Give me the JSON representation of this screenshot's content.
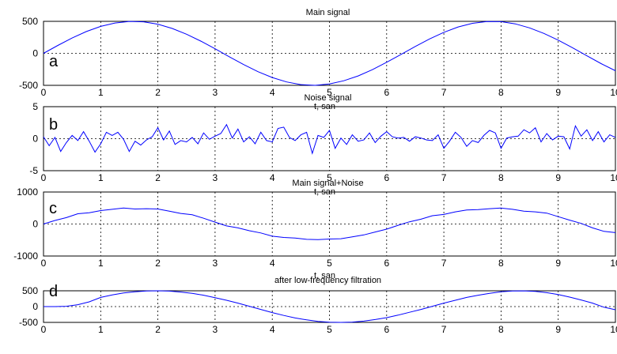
{
  "chart_data": [
    {
      "type": "line",
      "panel_label": "a",
      "title": "Main signal",
      "xlabel": "",
      "ylabel": "",
      "xlim": [
        0,
        10
      ],
      "ylim": [
        -500,
        500
      ],
      "xticks": [
        "0",
        "1",
        "2",
        "3",
        "4",
        "5",
        "6",
        "7",
        "8",
        "9",
        "10"
      ],
      "yticks": [
        "-500",
        "0",
        "500"
      ],
      "grid": true,
      "color": "#0000ff",
      "x": [
        0,
        0.25,
        0.5,
        0.75,
        1,
        1.25,
        1.5,
        1.75,
        2,
        2.25,
        2.5,
        2.75,
        3,
        3.25,
        3.5,
        3.75,
        4,
        4.25,
        4.5,
        4.75,
        5,
        5.25,
        5.5,
        5.75,
        6,
        6.25,
        6.5,
        6.75,
        7,
        7.25,
        7.5,
        7.75,
        8,
        8.25,
        8.5,
        8.75,
        9,
        9.25,
        9.5,
        9.75,
        10
      ],
      "y": [
        0,
        124,
        240,
        341,
        421,
        474,
        499,
        492,
        455,
        389,
        299,
        191,
        71,
        -54,
        -175,
        -286,
        -378,
        -447,
        -489,
        -500,
        -479,
        -429,
        -353,
        -255,
        -140,
        -17,
        108,
        225,
        329,
        412,
        469,
        498,
        495,
        461,
        398,
        311,
        206,
        88,
        -38,
        -160,
        -272
      ]
    },
    {
      "type": "line",
      "panel_label": "b",
      "title": "Noise signal",
      "xlabel": "t, san",
      "ylabel": "",
      "xlim": [
        0,
        10
      ],
      "ylim": [
        -5,
        5
      ],
      "xticks": [
        "0",
        "1",
        "2",
        "3",
        "4",
        "5",
        "6",
        "7",
        "8",
        "9",
        "10"
      ],
      "yticks": [
        "-5",
        "0",
        "5"
      ],
      "grid": true,
      "color": "#0000ff",
      "x": [
        0,
        0.1,
        0.2,
        0.3,
        0.4,
        0.5,
        0.6,
        0.7,
        0.8,
        0.9,
        1,
        1.1,
        1.2,
        1.3,
        1.4,
        1.5,
        1.6,
        1.7,
        1.8,
        1.9,
        2,
        2.1,
        2.2,
        2.3,
        2.4,
        2.5,
        2.6,
        2.7,
        2.8,
        2.9,
        3,
        3.1,
        3.2,
        3.3,
        3.4,
        3.5,
        3.6,
        3.7,
        3.8,
        3.9,
        4,
        4.1,
        4.2,
        4.3,
        4.4,
        4.5,
        4.6,
        4.7,
        4.8,
        4.9,
        5,
        5.1,
        5.2,
        5.3,
        5.4,
        5.5,
        5.6,
        5.7,
        5.8,
        5.9,
        6,
        6.1,
        6.2,
        6.3,
        6.4,
        6.5,
        6.6,
        6.7,
        6.8,
        6.9,
        7,
        7.1,
        7.2,
        7.3,
        7.4,
        7.5,
        7.6,
        7.7,
        7.8,
        7.9,
        8,
        8.1,
        8.2,
        8.3,
        8.4,
        8.5,
        8.6,
        8.7,
        8.8,
        8.9,
        9,
        9.1,
        9.2,
        9.3,
        9.4,
        9.5,
        9.6,
        9.7,
        9.8,
        9.9,
        10
      ],
      "y": [
        0.3,
        -1.1,
        0.2,
        -2,
        -0.6,
        0.5,
        -0.3,
        1.1,
        -0.4,
        -2.1,
        -0.8,
        1,
        0.5,
        1,
        -0.1,
        -2,
        -0.4,
        -1,
        -0.2,
        0.3,
        1.7,
        -0.2,
        1.2,
        -0.9,
        -0.3,
        -0.5,
        0.2,
        -0.8,
        0.9,
        -0.1,
        0.4,
        0.8,
        2.2,
        0.1,
        1.5,
        -0.5,
        0.3,
        -0.8,
        1,
        -0.3,
        -0.5,
        1.6,
        1.8,
        0.2,
        -0.3,
        0.6,
        1,
        -2.3,
        0.5,
        0.2,
        1.3,
        -1.5,
        0.1,
        -0.9,
        0.6,
        -0.4,
        -0.2,
        0.9,
        -0.6,
        0.4,
        1.1,
        0.3,
        0.1,
        0.2,
        -0.4,
        0.3,
        0.1,
        -0.2,
        -0.3,
        0.6,
        -1.5,
        -0.4,
        1,
        0.2,
        -1.2,
        -0.3,
        -0.6,
        0.5,
        1.3,
        0.9,
        -1.5,
        0.1,
        0.3,
        0.4,
        1.4,
        0.9,
        1.7,
        -0.5,
        0.8,
        -0.2,
        0.4,
        0.3,
        -1.6,
        2,
        0.4,
        1.4,
        -0.3,
        1.1,
        -0.5,
        0.6,
        0.2
      ]
    },
    {
      "type": "line",
      "panel_label": "c",
      "title": "Main signal+Noise",
      "xlabel": "t, san",
      "ylabel": "",
      "xlim": [
        0,
        10
      ],
      "ylim": [
        -1000,
        1000
      ],
      "xticks": [
        "0",
        "1",
        "2",
        "3",
        "4",
        "5",
        "6",
        "7",
        "8",
        "9",
        "10"
      ],
      "yticks": [
        "-1000",
        "0",
        "1000"
      ],
      "grid": true,
      "color": "#0000ff",
      "x": [
        0,
        0.2,
        0.4,
        0.6,
        0.8,
        1,
        1.2,
        1.4,
        1.6,
        1.8,
        2,
        2.2,
        2.4,
        2.6,
        2.8,
        3,
        3.2,
        3.4,
        3.6,
        3.8,
        4,
        4.2,
        4.4,
        4.6,
        4.8,
        5,
        5.2,
        5.4,
        5.6,
        5.8,
        6,
        6.2,
        6.4,
        6.6,
        6.8,
        7,
        7.2,
        7.4,
        7.6,
        7.8,
        8,
        8.2,
        8.4,
        8.6,
        8.8,
        9,
        9.2,
        9.4,
        9.6,
        9.8,
        10
      ],
      "y": [
        0,
        110,
        200,
        320,
        350,
        420,
        460,
        500,
        470,
        480,
        470,
        400,
        330,
        290,
        180,
        60,
        -60,
        -120,
        -210,
        -280,
        -380,
        -420,
        -440,
        -480,
        -490,
        -470,
        -460,
        -400,
        -340,
        -250,
        -160,
        -40,
        70,
        150,
        260,
        300,
        380,
        440,
        450,
        480,
        500,
        460,
        400,
        380,
        340,
        230,
        120,
        20,
        -120,
        -230,
        -270
      ]
    },
    {
      "type": "line",
      "panel_label": "d",
      "title": "after low-frequency filtration",
      "xlabel": "t, san",
      "ylabel": "",
      "xlim": [
        0,
        10
      ],
      "ylim": [
        -500,
        500
      ],
      "xticks": [
        "0",
        "1",
        "2",
        "3",
        "4",
        "5",
        "6",
        "7",
        "8",
        "9",
        "10"
      ],
      "yticks": [
        "-500",
        "0",
        "500"
      ],
      "grid": true,
      "color": "#0000ff",
      "x": [
        0,
        0.2,
        0.4,
        0.6,
        0.8,
        1,
        1.2,
        1.4,
        1.6,
        1.8,
        2,
        2.2,
        2.4,
        2.6,
        2.8,
        3,
        3.2,
        3.4,
        3.6,
        3.8,
        4,
        4.2,
        4.4,
        4.6,
        4.8,
        5,
        5.2,
        5.4,
        5.6,
        5.8,
        6,
        6.2,
        6.4,
        6.6,
        6.8,
        7,
        7.2,
        7.4,
        7.6,
        7.8,
        8,
        8.2,
        8.4,
        8.6,
        8.8,
        9,
        9.2,
        9.4,
        9.6,
        9.8,
        10
      ],
      "y": [
        0,
        0,
        10,
        60,
        150,
        290,
        370,
        430,
        470,
        495,
        500,
        490,
        460,
        420,
        360,
        280,
        200,
        110,
        10,
        -90,
        -190,
        -280,
        -360,
        -420,
        -470,
        -495,
        -500,
        -490,
        -460,
        -410,
        -350,
        -270,
        -180,
        -90,
        10,
        110,
        200,
        290,
        360,
        420,
        470,
        495,
        498,
        480,
        440,
        380,
        300,
        210,
        110,
        -20,
        -100
      ]
    }
  ]
}
